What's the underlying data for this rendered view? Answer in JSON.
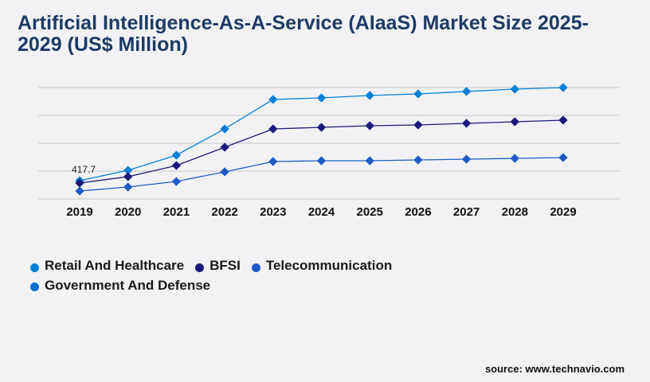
{
  "chart_data": {
    "type": "line",
    "title": "Artificial Intelligence-As-A-Service (AIaaS) Market Size 2025-2029 (US$ Million)",
    "categories": [
      "2019",
      "2020",
      "2021",
      "2022",
      "2023",
      "2024",
      "2025",
      "2026",
      "2027",
      "2028",
      "2029"
    ],
    "ylim": [
      0,
      2542
    ],
    "grid": true,
    "legend_placement": "bottom",
    "series": [
      {
        "name": "Retail And Healthcare",
        "color": "#0a7fd6",
        "values": [
          418,
          654,
          999,
          1598,
          2270,
          2306,
          2361,
          2397,
          2452,
          2506,
          2542
        ]
      },
      {
        "name": "BFSI",
        "color": "#1b1a7a",
        "values": [
          363,
          509,
          763,
          1180,
          1598,
          1634,
          1670,
          1689,
          1725,
          1761,
          1798
        ]
      },
      {
        "name": "Telecommunication",
        "color": "#1f5bc4",
        "values": [
          182,
          272,
          400,
          618,
          854,
          872,
          872,
          890,
          908,
          926,
          944
        ]
      }
    ],
    "legend_extra": [
      {
        "name": "Government And Defense",
        "color": "#0a6fd0"
      }
    ],
    "annotations": [
      {
        "category": "2019",
        "series": "Retail And Healthcare",
        "text": "417.7"
      }
    ]
  },
  "source": "source: www.technavio.com"
}
